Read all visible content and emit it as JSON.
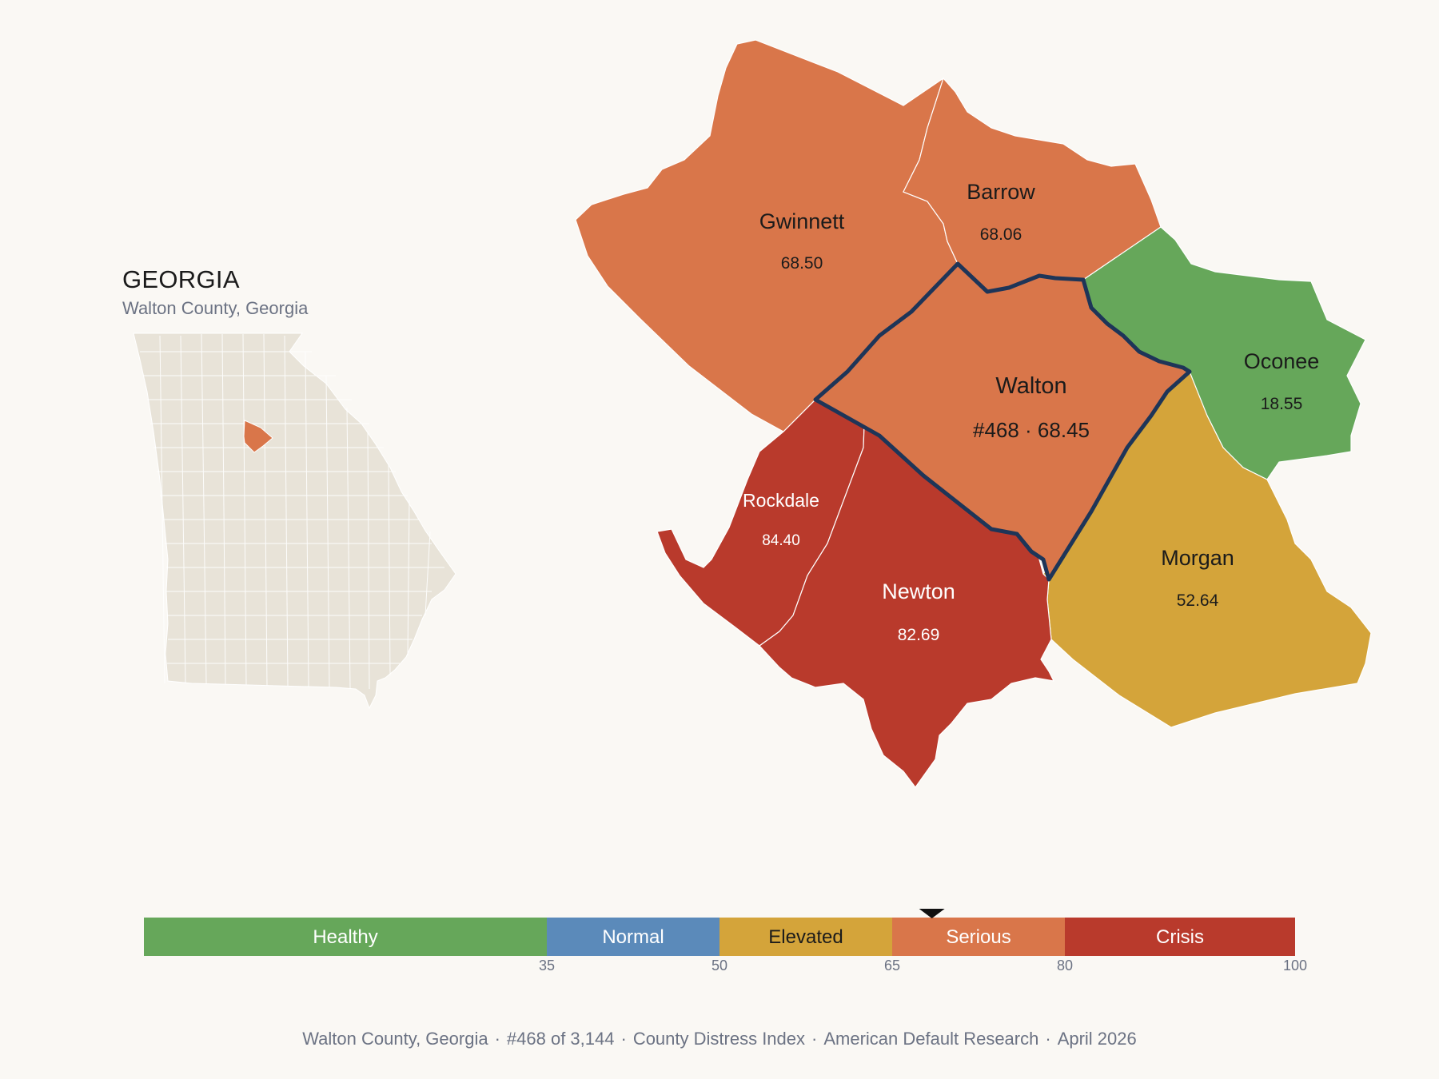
{
  "inset": {
    "state_name": "GEORGIA",
    "subtitle": "Walton County, Georgia",
    "state_fill": "#e8e3d8",
    "highlight_fill": "#d9764a"
  },
  "counties": [
    {
      "name": "Gwinnett",
      "value": "68.50",
      "tier": "Serious",
      "color": "#d9764a",
      "text_color": "#1b1b1b"
    },
    {
      "name": "Barrow",
      "value": "68.06",
      "tier": "Serious",
      "color": "#d9764a",
      "text_color": "#1b1b1b"
    },
    {
      "name": "Walton",
      "value": "#468 · 68.45",
      "tier": "Serious",
      "color": "#d9764a",
      "text_color": "#1b1b1b",
      "focus": true
    },
    {
      "name": "Oconee",
      "value": "18.55",
      "tier": "Healthy",
      "color": "#66a75a",
      "text_color": "#1b1b1b"
    },
    {
      "name": "Rockdale",
      "value": "84.40",
      "tier": "Crisis",
      "color": "#b93a2c",
      "text_color": "#ffffff"
    },
    {
      "name": "Newton",
      "value": "82.69",
      "tier": "Crisis",
      "color": "#b93a2c",
      "text_color": "#ffffff"
    },
    {
      "name": "Morgan",
      "value": "52.64",
      "tier": "Elevated",
      "color": "#d4a43a",
      "text_color": "#1b1b1b"
    }
  ],
  "focus_outline_color": "#1e3558",
  "scale": {
    "min": 0,
    "max": 100,
    "marker_value": 68.45,
    "bands": [
      {
        "label": "Healthy",
        "from": 0,
        "to": 35,
        "color": "#66a75a",
        "text_color": "#ffffff"
      },
      {
        "label": "Normal",
        "from": 35,
        "to": 50,
        "color": "#5b8aba",
        "text_color": "#ffffff"
      },
      {
        "label": "Elevated",
        "from": 50,
        "to": 65,
        "color": "#d4a43a",
        "text_color": "#1b1b1b"
      },
      {
        "label": "Serious",
        "from": 65,
        "to": 80,
        "color": "#d9764a",
        "text_color": "#ffffff"
      },
      {
        "label": "Crisis",
        "from": 80,
        "to": 100,
        "color": "#b93a2c",
        "text_color": "#ffffff"
      }
    ],
    "ticks": [
      "35",
      "50",
      "65",
      "80",
      "100"
    ]
  },
  "footer": {
    "items": [
      "Walton County, Georgia",
      "#468 of 3,144",
      "County Distress Index",
      "American Default Research",
      "April 2026"
    ],
    "separator": "·"
  }
}
